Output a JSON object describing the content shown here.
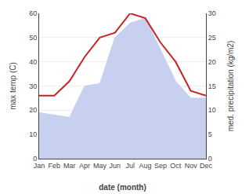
{
  "chart_data": {
    "type": "line",
    "categories": [
      "Jan",
      "Feb",
      "Mar",
      "Apr",
      "May",
      "Jun",
      "Jul",
      "Aug",
      "Sep",
      "Oct",
      "Nov",
      "Dec"
    ],
    "series": [
      {
        "type": "area",
        "color": "#c8d0f0",
        "values": [
          19,
          18,
          17,
          30,
          31,
          50,
          56,
          58,
          45,
          32,
          25,
          25
        ]
      },
      {
        "type": "line",
        "color": "#cc2222",
        "axis": "y2",
        "values": [
          13,
          13,
          16,
          21,
          25,
          26,
          30,
          29,
          24,
          20,
          14,
          13
        ]
      }
    ],
    "xlabel": "date (month)",
    "ylabel": "max temp (C)",
    "y2label": "med. precipitation (kg/m2)",
    "ylim": [
      0,
      60
    ],
    "yticks": [
      0,
      10,
      20,
      30,
      40,
      50,
      60
    ],
    "y2lim": [
      0,
      30
    ],
    "y2ticks": [
      0,
      5,
      10,
      15,
      20,
      25,
      30
    ],
    "grid": true
  }
}
